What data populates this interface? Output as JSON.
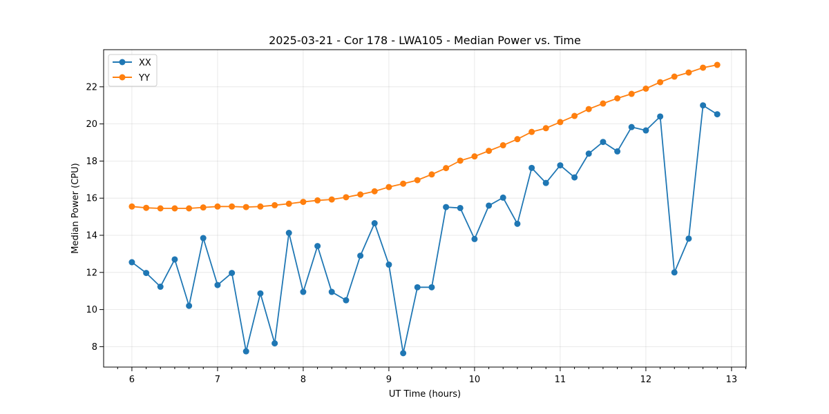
{
  "chart_data": {
    "type": "line",
    "title": "2025-03-21 - Cor 178 - LWA105 - Median Power vs. Time",
    "xlabel": "UT Time (hours)",
    "ylabel": "Median Power (CPU)",
    "xlim": [
      5.67,
      13.17
    ],
    "ylim": [
      6.9,
      24.0
    ],
    "xticks": [
      6,
      7,
      8,
      9,
      10,
      11,
      12,
      13
    ],
    "yticks": [
      8,
      10,
      12,
      14,
      16,
      18,
      20,
      22
    ],
    "grid": true,
    "legend_position": "top-left",
    "x": [
      6.0,
      6.167,
      6.333,
      6.5,
      6.667,
      6.833,
      7.0,
      7.167,
      7.333,
      7.5,
      7.667,
      7.833,
      8.0,
      8.167,
      8.333,
      8.5,
      8.667,
      8.833,
      9.0,
      9.167,
      9.333,
      9.5,
      9.667,
      9.833,
      10.0,
      10.167,
      10.333,
      10.5,
      10.667,
      10.833,
      11.0,
      11.167,
      11.333,
      11.5,
      11.667,
      11.833,
      12.0,
      12.167,
      12.333,
      12.5,
      12.667,
      12.833
    ],
    "series": [
      {
        "name": "XX",
        "color": "#1f77b4",
        "values": [
          12.55,
          11.97,
          11.23,
          12.7,
          10.2,
          13.85,
          11.32,
          11.97,
          7.75,
          10.87,
          8.18,
          14.13,
          10.95,
          13.42,
          10.95,
          10.5,
          12.9,
          14.65,
          12.42,
          7.65,
          11.2,
          11.2,
          15.52,
          15.47,
          13.8,
          15.6,
          16.03,
          14.62,
          17.63,
          16.82,
          17.77,
          17.12,
          18.4,
          19.03,
          18.52,
          19.83,
          19.65,
          20.4,
          12.0,
          13.82,
          21.0,
          20.52
        ]
      },
      {
        "name": "YY",
        "color": "#ff7f0e",
        "values": [
          15.55,
          15.48,
          15.45,
          15.45,
          15.45,
          15.5,
          15.55,
          15.55,
          15.52,
          15.55,
          15.62,
          15.7,
          15.8,
          15.88,
          15.93,
          16.05,
          16.2,
          16.37,
          16.6,
          16.78,
          16.97,
          17.28,
          17.62,
          18.02,
          18.25,
          18.55,
          18.85,
          19.18,
          19.57,
          19.77,
          20.1,
          20.43,
          20.8,
          21.1,
          21.38,
          21.62,
          21.9,
          22.25,
          22.55,
          22.77,
          23.03,
          23.18
        ]
      }
    ]
  }
}
